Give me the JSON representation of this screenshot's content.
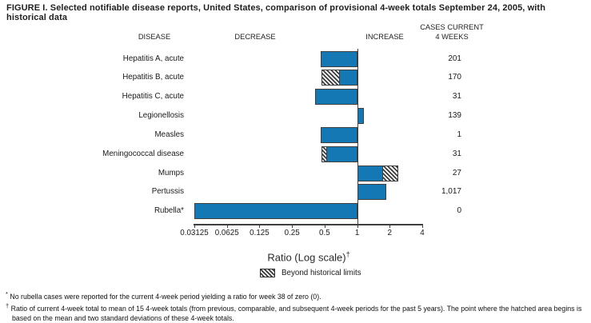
{
  "title": "FIGURE I. Selected notifiable disease reports, United States, comparison of provisional 4-week totals September 24, 2005, with historical data",
  "headers": {
    "disease": "DISEASE",
    "decrease": "DECREASE",
    "increase": "INCREASE",
    "cases_line1": "CASES CURRENT",
    "cases_line2": "4 WEEKS"
  },
  "chart_data": {
    "type": "bar",
    "orientation": "horizontal",
    "scale": "log2",
    "title": "Selected notifiable disease reports, United States, comparison of provisional 4-week totals September 24, 2005, with historical data",
    "xlabel": "Ratio (Log scale)",
    "xlabel_superscript": "†",
    "x_axis": {
      "min": 0.03125,
      "max": 4,
      "baseline": 1,
      "tick_labels": [
        "0.03125",
        "0.0625",
        "0.125",
        "0.25",
        "0.5",
        "1",
        "2",
        "4"
      ]
    },
    "legend_label": "Beyond historical limits",
    "rows": [
      {
        "disease": "Hepatitis A, acute",
        "cases": "201",
        "ratio": 0.46,
        "hatch_from": null
      },
      {
        "disease": "Hepatitis B, acute",
        "cases": "170",
        "ratio": 0.47,
        "hatch_from": 0.68
      },
      {
        "disease": "Hepatitis C, acute",
        "cases": "31",
        "ratio": 0.41,
        "hatch_from": null
      },
      {
        "disease": "Legionellosis",
        "cases": "139",
        "ratio": 1.16,
        "hatch_from": null
      },
      {
        "disease": "Measles",
        "cases": "1",
        "ratio": 0.46,
        "hatch_from": null
      },
      {
        "disease": "Meningococcal disease",
        "cases": "31",
        "ratio": 0.47,
        "hatch_from": 0.52
      },
      {
        "disease": "Mumps",
        "cases": "27",
        "ratio": 2.4,
        "hatch_from": 1.75
      },
      {
        "disease": "Pertussis",
        "cases": "1,017",
        "ratio": 1.86,
        "hatch_from": null
      },
      {
        "disease": "Rubella*",
        "cases": "0",
        "ratio": 0.03125,
        "hatch_from": null
      }
    ]
  },
  "footnotes": [
    {
      "marker": "*",
      "text": " No rubella cases were reported for the current 4-week period yielding a ratio for week 38 of zero (0)."
    },
    {
      "marker": "†",
      "text": " Ratio of current 4-week total to mean of 15 4-week totals (from previous, comparable, and subsequent 4-week periods for the past 5 years). The point where the hatched area begins is based on the mean and two standard deviations of these 4-week totals."
    }
  ],
  "colors": {
    "bar_fill": "#1478b4",
    "bar_border": "#3f3f3f",
    "hatch_stripe": "#3a3a3a",
    "text": "#1a1a1a"
  }
}
